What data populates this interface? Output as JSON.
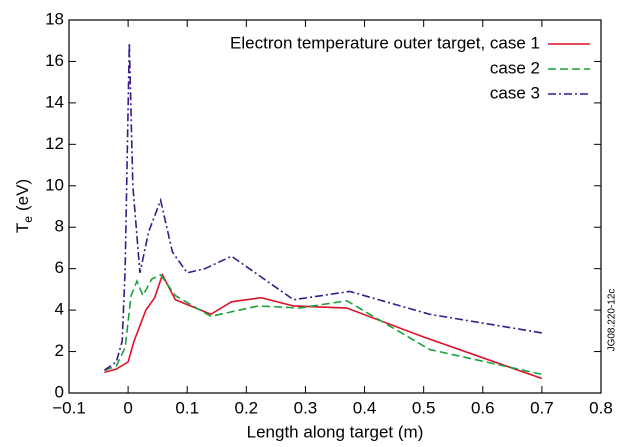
{
  "chart_data": {
    "type": "line",
    "x_label": "Length along target (m)",
    "y_label": "T",
    "y_label_subscript": "e",
    "y_label_unit": "(eV)",
    "side_note": "JG08.220-12c",
    "xlim": [
      -0.1,
      0.8
    ],
    "xticks": [
      {
        "value": -0.1,
        "label": "−0.1"
      },
      0,
      0.1,
      0.2,
      0.3,
      0.4,
      0.5,
      0.6,
      0.7,
      0.8
    ],
    "ylim": [
      0,
      18
    ],
    "yticks": [
      0,
      2,
      4,
      6,
      8,
      10,
      12,
      14,
      16,
      18
    ],
    "legend": "upper right",
    "series": [
      {
        "name": "Electron temperature outer target, case 1",
        "color": "#e0102a",
        "dash": "solid",
        "x": [
          -0.04,
          -0.02,
          0,
          0.01,
          0.03,
          0.045,
          0.058,
          0.08,
          0.14,
          0.175,
          0.225,
          0.28,
          0.37,
          0.5,
          0.7
        ],
        "values": [
          1.0,
          1.15,
          1.5,
          2.5,
          4.0,
          4.6,
          5.7,
          4.5,
          3.8,
          4.4,
          4.6,
          4.2,
          4.1,
          2.7,
          0.7
        ]
      },
      {
        "name": "case 2",
        "color": "#1aa33a",
        "dash": "dashed",
        "x": [
          -0.04,
          -0.02,
          -0.005,
          0.005,
          0.015,
          0.025,
          0.04,
          0.055,
          0.08,
          0.14,
          0.22,
          0.29,
          0.37,
          0.51,
          0.7
        ],
        "values": [
          1.1,
          1.3,
          2.2,
          4.7,
          5.4,
          4.7,
          5.5,
          5.7,
          4.7,
          3.7,
          4.2,
          4.1,
          4.45,
          2.1,
          0.9
        ]
      },
      {
        "name": "case 3",
        "color": "#3a1a8a",
        "dash": "dashdot",
        "x": [
          -0.04,
          -0.02,
          -0.01,
          -0.005,
          0.002,
          0.008,
          0.02,
          0.035,
          0.055,
          0.075,
          0.1,
          0.13,
          0.175,
          0.28,
          0.375,
          0.51,
          0.7
        ],
        "values": [
          1.1,
          1.5,
          2.5,
          6.0,
          16.9,
          10.0,
          5.8,
          7.8,
          9.3,
          6.8,
          5.8,
          6.0,
          6.6,
          4.5,
          4.9,
          3.8,
          2.9
        ]
      }
    ]
  }
}
